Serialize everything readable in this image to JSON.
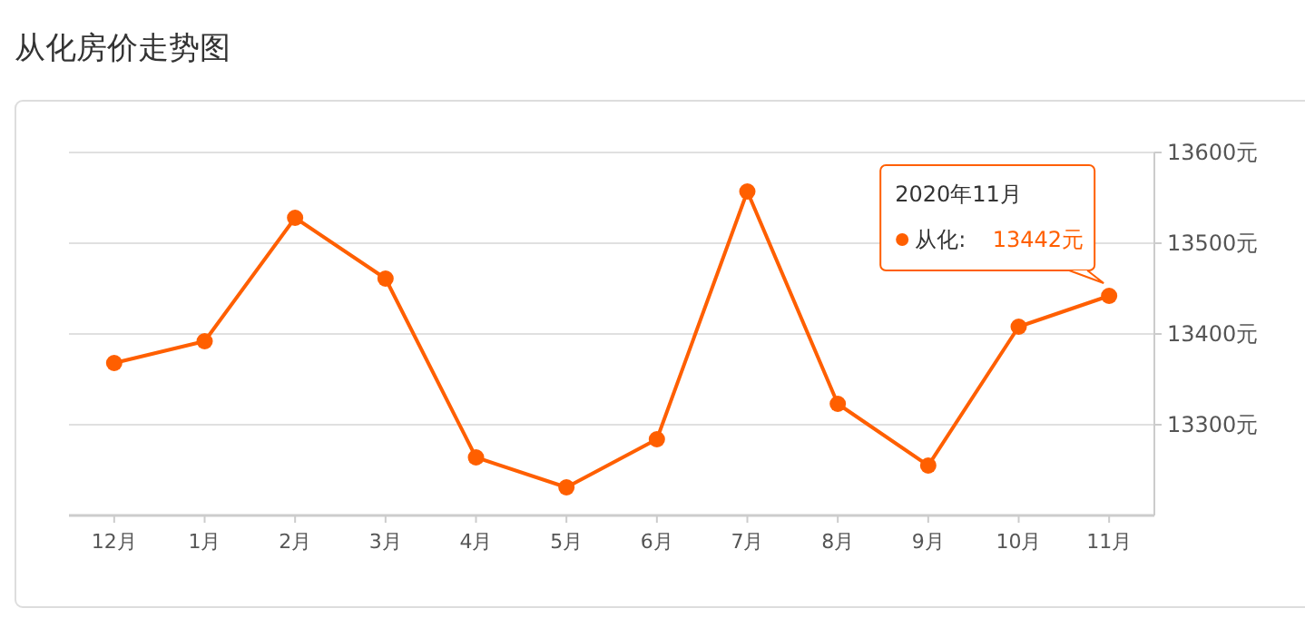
{
  "chart_data": {
    "type": "line",
    "title": "从化房价走势图",
    "categories": [
      "12月",
      "1月",
      "2月",
      "3月",
      "4月",
      "5月",
      "6月",
      "7月",
      "8月",
      "9月",
      "10月",
      "11月"
    ],
    "series": [
      {
        "color": "#ff5f00",
        "values": [
          13368,
          13392,
          13528,
          13461,
          13264,
          13231,
          13284,
          13557,
          13323,
          13255,
          13408,
          13442
        ]
      }
    ],
    "ylim": [
      13200,
      13600
    ],
    "yticks": [
      {
        "value": 13300,
        "label": "13300元"
      },
      {
        "value": 13400,
        "label": "13400元"
      },
      {
        "value": 13500,
        "label": "13500元"
      },
      {
        "value": 13600,
        "label": "13600元"
      }
    ],
    "grid": "y",
    "marker": "circle",
    "annotations": [
      "2020年11月",
      "从化:",
      "13442元"
    ]
  }
}
